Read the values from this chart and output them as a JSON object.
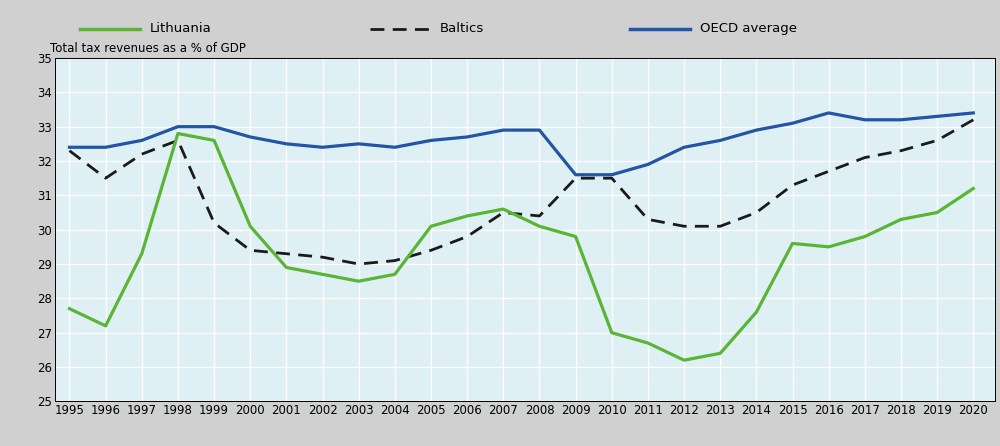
{
  "years": [
    1995,
    1996,
    1997,
    1998,
    1999,
    2000,
    2001,
    2002,
    2003,
    2004,
    2005,
    2006,
    2007,
    2008,
    2009,
    2010,
    2011,
    2012,
    2013,
    2014,
    2015,
    2016,
    2017,
    2018,
    2019,
    2020
  ],
  "lithuania": [
    27.7,
    27.2,
    29.3,
    32.8,
    32.6,
    30.1,
    28.9,
    28.7,
    28.5,
    28.7,
    30.1,
    30.4,
    30.6,
    30.1,
    29.8,
    27.0,
    26.7,
    26.2,
    26.4,
    27.6,
    29.6,
    29.5,
    29.8,
    30.3,
    30.5,
    31.2
  ],
  "baltics": [
    32.3,
    31.5,
    32.2,
    32.6,
    30.2,
    29.4,
    29.3,
    29.2,
    29.0,
    29.1,
    29.4,
    29.8,
    30.5,
    30.4,
    31.5,
    31.5,
    30.3,
    30.1,
    30.1,
    30.5,
    31.3,
    31.7,
    32.1,
    32.3,
    32.6,
    33.2
  ],
  "oecd": [
    32.4,
    32.4,
    32.6,
    33.0,
    33.0,
    32.7,
    32.5,
    32.4,
    32.5,
    32.4,
    32.6,
    32.7,
    32.9,
    32.9,
    31.6,
    31.6,
    31.9,
    32.4,
    32.6,
    32.9,
    33.1,
    33.4,
    33.2,
    33.2,
    33.3,
    33.4
  ],
  "ylabel": "Total tax revenues as a % of GDP",
  "ylim": [
    25,
    35
  ],
  "yticks": [
    25,
    26,
    27,
    28,
    29,
    30,
    31,
    32,
    33,
    34,
    35
  ],
  "plot_area_color": "#dff0f5",
  "lithuania_color": "#5ab534",
  "baltics_color": "#1a1a1a",
  "oecd_color": "#2255a4",
  "legend_bg": "#d0d0d0",
  "grid_color": "#ffffff",
  "ylabel_fontsize": 8.5,
  "tick_fontsize": 8.5,
  "legend_fontsize": 9.5,
  "linewidth_main": 2.0
}
